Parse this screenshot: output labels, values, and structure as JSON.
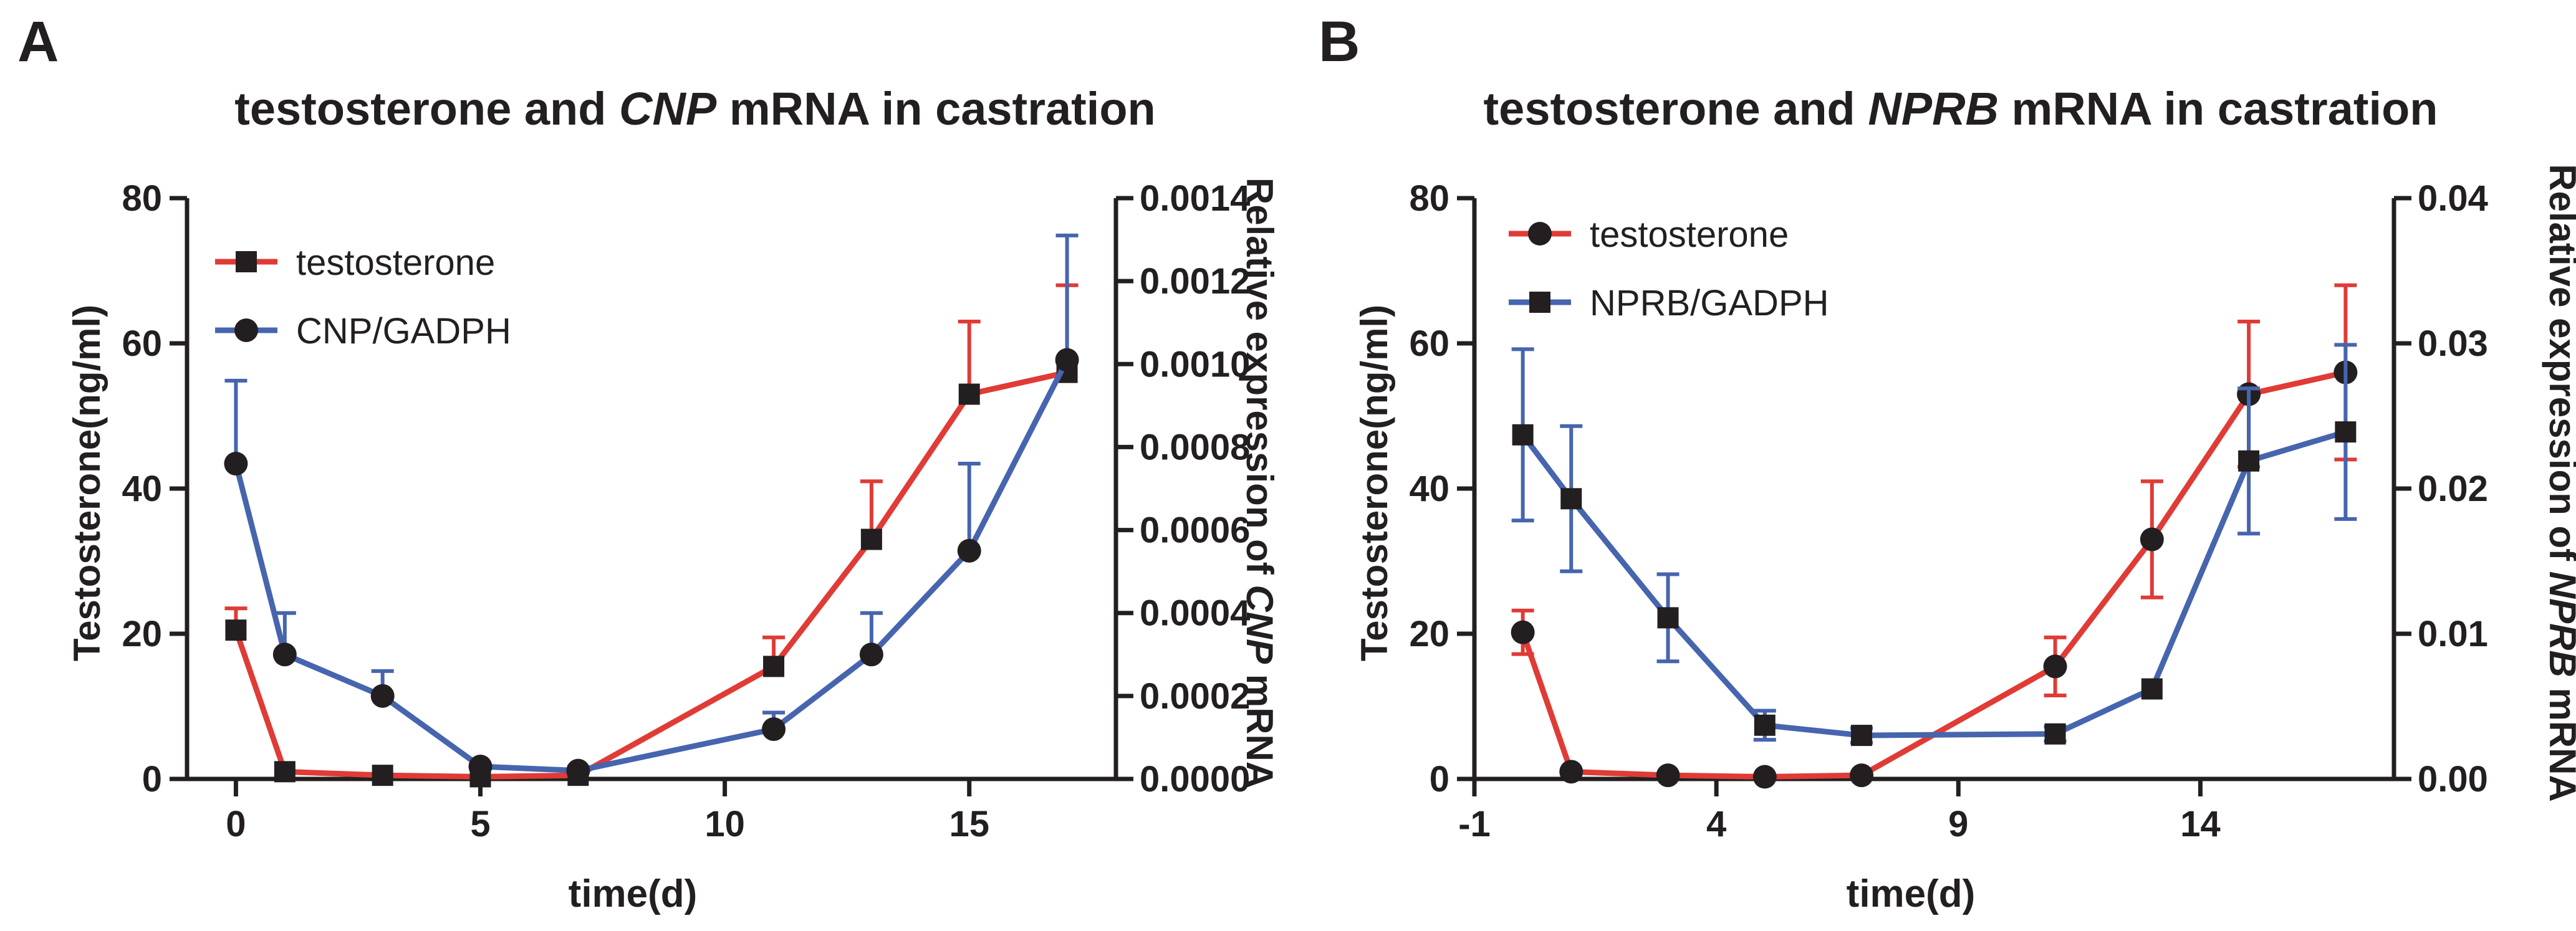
{
  "colors": {
    "red": "#e03b36",
    "blue": "#4665ae",
    "ink": "#231f20",
    "errbar_red": "#e03b36",
    "errbar_blue": "#4665ae"
  },
  "chart_data": [
    {
      "panel_label": "A",
      "type": "line",
      "title": {
        "pre": "testosterone and ",
        "italic": "CNP",
        "post": " mRNA in castration"
      },
      "xlabel": "time(d)",
      "ylabel_left": "Testosterone(ng/ml)",
      "ylabel_right": {
        "pre": "Relative expression of ",
        "italic": "CNP",
        "post": " mRNA"
      },
      "xlim": [
        -1,
        18
      ],
      "x_ticks": [
        0,
        5,
        10,
        15
      ],
      "x_tick_labels": [
        "0",
        "5",
        "10",
        "15"
      ],
      "ylim_left": [
        0,
        80
      ],
      "y_ticks_left": [
        0,
        20,
        40,
        60,
        80
      ],
      "y_tick_labels_left": [
        "0",
        "20",
        "40",
        "60",
        "80"
      ],
      "ylim_right": [
        0,
        0.0014
      ],
      "y_ticks_right": [
        0,
        0.0002,
        0.0004,
        0.0006,
        0.0008,
        0.001,
        0.0012,
        0.0014
      ],
      "y_tick_labels_right": [
        "0.0000",
        "0.0002",
        "0.0004",
        "0.0006",
        "0.0008",
        "0.0010",
        "0.0012",
        "0.0014"
      ],
      "legend_position": "top-left",
      "series": [
        {
          "name": "testosterone",
          "color": "red",
          "marker": "square",
          "axis": "left",
          "x": [
            0,
            1,
            3,
            5,
            7,
            11,
            13,
            15,
            17
          ],
          "y": [
            20.5,
            1,
            0.5,
            0.3,
            0.5,
            15.5,
            33,
            53,
            56
          ],
          "err_up": [
            3,
            0,
            0,
            0,
            0,
            4,
            8,
            10,
            12
          ],
          "err_down": [
            0,
            0,
            0,
            0,
            0,
            0,
            0,
            0,
            0
          ]
        },
        {
          "name": "CNP/GADPH",
          "color": "blue",
          "marker": "circle",
          "axis": "right",
          "x": [
            0,
            1,
            3,
            5,
            7,
            11,
            13,
            15,
            17
          ],
          "y": [
            0.00076,
            0.0003,
            0.0002,
            3e-05,
            2e-05,
            0.00012,
            0.0003,
            0.00055,
            0.00101
          ],
          "err_up": [
            0.0002,
            0.0001,
            6e-05,
            0,
            0,
            4e-05,
            0.0001,
            0.00021,
            0.0003
          ],
          "err_down": [
            0,
            0,
            0,
            0,
            0,
            0,
            0,
            0,
            0
          ]
        }
      ]
    },
    {
      "panel_label": "B",
      "type": "line",
      "title": {
        "pre": "testosterone and ",
        "italic": "NPRB",
        "post": " mRNA in castration"
      },
      "xlabel": "time(d)",
      "ylabel_left": "Testosterone(ng/ml)",
      "ylabel_right": {
        "pre": "Relative expression of ",
        "italic": "NPRB",
        "post": " mRNA"
      },
      "xlim": [
        -1,
        18
      ],
      "x_ticks": [
        -1,
        4,
        9,
        14
      ],
      "x_tick_labels": [
        "-1",
        "4",
        "9",
        "14"
      ],
      "ylim_left": [
        0,
        80
      ],
      "y_ticks_left": [
        0,
        20,
        40,
        60,
        80
      ],
      "y_tick_labels_left": [
        "0",
        "20",
        "40",
        "60",
        "80"
      ],
      "ylim_right": [
        0,
        0.04
      ],
      "y_ticks_right": [
        0,
        0.01,
        0.02,
        0.03,
        0.04
      ],
      "y_tick_labels_right": [
        "0.00",
        "0.01",
        "0.02",
        "0.03",
        "0.04"
      ],
      "legend_position": "top-left",
      "series": [
        {
          "name": "testosterone",
          "color": "red",
          "marker": "circle",
          "axis": "left",
          "x": [
            0,
            1,
            3,
            5,
            7,
            11,
            13,
            15,
            17
          ],
          "y": [
            20.2,
            1,
            0.5,
            0.3,
            0.5,
            15.5,
            33,
            53,
            56
          ],
          "err_up": [
            3,
            0,
            0,
            0,
            0,
            4,
            8,
            10,
            12
          ],
          "err_down": [
            3,
            0,
            0,
            0,
            0,
            4,
            8,
            10,
            12
          ]
        },
        {
          "name": "NPRB/GADPH",
          "color": "blue",
          "marker": "square",
          "axis": "right",
          "x": [
            0,
            1,
            3,
            5,
            7,
            11,
            13,
            15,
            17
          ],
          "y": [
            0.0237,
            0.0193,
            0.0111,
            0.0037,
            0.003,
            0.0031,
            0.0062,
            0.0219,
            0.0239
          ],
          "err_up": [
            0.0059,
            0.005,
            0.003,
            0.001,
            0.0005,
            0.0005,
            0,
            0.005,
            0.006
          ],
          "err_down": [
            0.0059,
            0.005,
            0.003,
            0.001,
            0.0005,
            0.0005,
            0,
            0.005,
            0.006
          ]
        }
      ]
    }
  ]
}
